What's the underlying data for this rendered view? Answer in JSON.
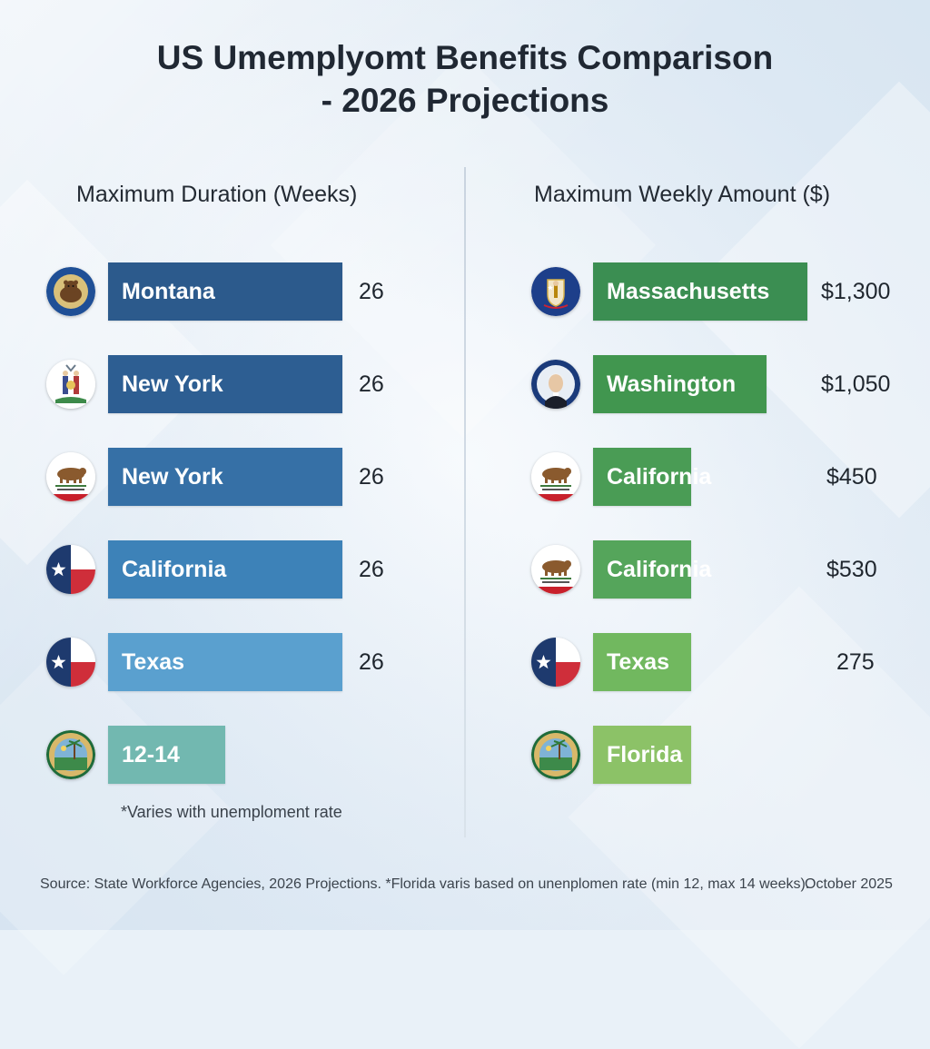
{
  "title_lines": [
    "US Umemplyomt Benefits Comparison",
    "- 2026 Projections"
  ],
  "chart_data": [
    {
      "type": "bar",
      "orientation": "horizontal",
      "title": "Maximum Duration (Weeks)",
      "categories": [
        "Montana",
        "New York",
        "New York",
        "California",
        "Texas",
        "12-14"
      ],
      "values": [
        26,
        26,
        26,
        26,
        26,
        13
      ],
      "value_labels": [
        "26",
        "26",
        "26",
        "26",
        "26",
        ""
      ],
      "emblems": [
        "montana-seal-icon",
        "new-york-seal-icon",
        "california-bear-flag-icon",
        "texas-flag-icon",
        "texas-flag-icon",
        "florida-seal-icon"
      ],
      "bar_colors": [
        "#2c5a8c",
        "#2d5e92",
        "#3670a6",
        "#3d82b8",
        "#5aa0cf",
        "#72b8b0"
      ],
      "note": "*Varies with unemploment rate",
      "grid": false,
      "legend": "none"
    },
    {
      "type": "bar",
      "orientation": "horizontal",
      "title": "Maximum Weekly Amount ($)",
      "categories": [
        "Massachusetts",
        "Washington",
        "California",
        "California",
        "Texas",
        "Florida"
      ],
      "values": [
        1300,
        1050,
        450,
        530,
        275,
        0
      ],
      "value_labels": [
        "$1,300",
        "$1,050",
        "$450",
        "$530",
        "275",
        ""
      ],
      "emblems": [
        "massachusetts-seal-icon",
        "washington-seal-icon",
        "california-bear-flag-icon",
        "california-bear-flag-icon",
        "texas-flag-icon",
        "florida-seal-icon"
      ],
      "bar_colors": [
        "#3b8e52",
        "#41964f",
        "#4a9c55",
        "#55a55b",
        "#71b85f",
        "#8cc267"
      ],
      "grid": false,
      "legend": "none"
    }
  ],
  "footer": {
    "source": "Source: State Workforce Agencies, 2026 Projections. *Florida varis based on unenplomen rate (min 12, max 14 weeks).",
    "date": "October 2025"
  }
}
